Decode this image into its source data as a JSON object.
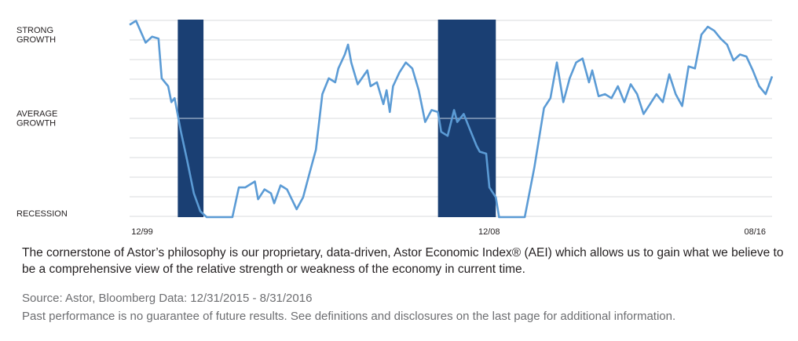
{
  "description": "The  cornerstone of Astor’s philosophy is our proprietary, data-driven,  Astor Economic Index® (AEI) which allows us to gain what we believe to be a comprehensive view of the relative strength or weakness of the economy in current time.",
  "source_line": "Source: Astor, Bloomberg Data: 12/31/2015 - 8/31/2016",
  "disclaimer": "Past performance is no guarantee of future results. See definitions and disclosures on the last page for additional information.",
  "chart_data": {
    "type": "line",
    "title": "",
    "xlabel": "",
    "ylabel": "",
    "x_range": [
      "1999-12",
      "2016-08"
    ],
    "ylim": [
      0,
      100
    ],
    "grid": true,
    "legend": "none",
    "y_tick_labels": [
      {
        "lines": [
          "STRONG",
          "GROWTH"
        ],
        "value": 92
      },
      {
        "lines": [
          "AVERAGE",
          "GROWTH"
        ],
        "value": 50
      },
      {
        "lines": [
          "RECESSION"
        ],
        "value": 2
      }
    ],
    "x_tick_labels": [
      {
        "label": "12/99",
        "x": "1999-12"
      },
      {
        "label": "12/08",
        "x": "2008-12"
      },
      {
        "label": "08/16",
        "x": "2016-08"
      }
    ],
    "recessions": [
      {
        "start": "2001-03",
        "end": "2001-11"
      },
      {
        "start": "2007-12",
        "end": "2009-06"
      }
    ],
    "colors": {
      "line": "#5b9bd5",
      "recession": "#1a3f73",
      "grid": "#d9dbde"
    },
    "series": [
      {
        "values": [
          [
            "1999-12",
            97
          ],
          [
            "2000-02",
            99
          ],
          [
            "2000-05",
            88
          ],
          [
            "2000-07",
            91
          ],
          [
            "2000-09",
            90
          ],
          [
            "2000-10",
            70
          ],
          [
            "2000-12",
            66
          ],
          [
            "2001-01",
            58
          ],
          [
            "2001-02",
            60
          ],
          [
            "2001-04",
            43
          ],
          [
            "2001-06",
            28
          ],
          [
            "2001-08",
            12
          ],
          [
            "2001-10",
            3
          ],
          [
            "2001-12",
            0
          ],
          [
            "2002-05",
            0
          ],
          [
            "2002-08",
            0
          ],
          [
            "2002-10",
            15
          ],
          [
            "2002-12",
            15
          ],
          [
            "2003-03",
            18
          ],
          [
            "2003-04",
            9
          ],
          [
            "2003-06",
            14
          ],
          [
            "2003-08",
            12
          ],
          [
            "2003-09",
            7
          ],
          [
            "2003-11",
            16
          ],
          [
            "2004-01",
            14
          ],
          [
            "2004-04",
            4
          ],
          [
            "2004-06",
            10
          ],
          [
            "2004-08",
            22
          ],
          [
            "2004-10",
            34
          ],
          [
            "2004-12",
            62
          ],
          [
            "2005-02",
            70
          ],
          [
            "2005-04",
            68
          ],
          [
            "2005-05",
            75
          ],
          [
            "2005-07",
            82
          ],
          [
            "2005-08",
            87
          ],
          [
            "2005-09",
            78
          ],
          [
            "2005-11",
            67
          ],
          [
            "2006-02",
            74
          ],
          [
            "2006-03",
            66
          ],
          [
            "2006-05",
            68
          ],
          [
            "2006-07",
            57
          ],
          [
            "2006-08",
            64
          ],
          [
            "2006-09",
            53
          ],
          [
            "2006-10",
            66
          ],
          [
            "2006-12",
            73
          ],
          [
            "2007-02",
            78
          ],
          [
            "2007-04",
            75
          ],
          [
            "2007-06",
            64
          ],
          [
            "2007-08",
            48
          ],
          [
            "2007-10",
            54
          ],
          [
            "2007-12",
            53
          ],
          [
            "2008-01",
            43
          ],
          [
            "2008-03",
            41
          ],
          [
            "2008-05",
            54
          ],
          [
            "2008-06",
            48
          ],
          [
            "2008-08",
            52
          ],
          [
            "2008-10",
            44
          ],
          [
            "2008-12",
            36
          ],
          [
            "2009-01",
            33
          ],
          [
            "2009-03",
            32
          ],
          [
            "2009-04",
            15
          ],
          [
            "2009-06",
            10
          ],
          [
            "2009-07",
            0
          ],
          [
            "2009-12",
            0
          ],
          [
            "2010-03",
            0
          ],
          [
            "2010-06",
            25
          ],
          [
            "2010-08",
            45
          ],
          [
            "2010-09",
            55
          ],
          [
            "2010-11",
            60
          ],
          [
            "2011-01",
            78
          ],
          [
            "2011-03",
            58
          ],
          [
            "2011-05",
            70
          ],
          [
            "2011-07",
            78
          ],
          [
            "2011-09",
            80
          ],
          [
            "2011-11",
            68
          ],
          [
            "2011-12",
            74
          ],
          [
            "2012-02",
            61
          ],
          [
            "2012-04",
            62
          ],
          [
            "2012-06",
            60
          ],
          [
            "2012-08",
            66
          ],
          [
            "2012-10",
            58
          ],
          [
            "2012-12",
            67
          ],
          [
            "2013-02",
            62
          ],
          [
            "2013-04",
            52
          ],
          [
            "2013-06",
            57
          ],
          [
            "2013-08",
            62
          ],
          [
            "2013-10",
            58
          ],
          [
            "2013-12",
            72
          ],
          [
            "2014-02",
            62
          ],
          [
            "2014-04",
            56
          ],
          [
            "2014-06",
            76
          ],
          [
            "2014-08",
            75
          ],
          [
            "2014-10",
            92
          ],
          [
            "2014-12",
            96
          ],
          [
            "2015-02",
            94
          ],
          [
            "2015-04",
            90
          ],
          [
            "2015-06",
            87
          ],
          [
            "2015-08",
            79
          ],
          [
            "2015-10",
            82
          ],
          [
            "2015-12",
            81
          ],
          [
            "2016-02",
            74
          ],
          [
            "2016-04",
            66
          ],
          [
            "2016-06",
            62
          ],
          [
            "2016-08",
            71
          ]
        ]
      }
    ]
  }
}
